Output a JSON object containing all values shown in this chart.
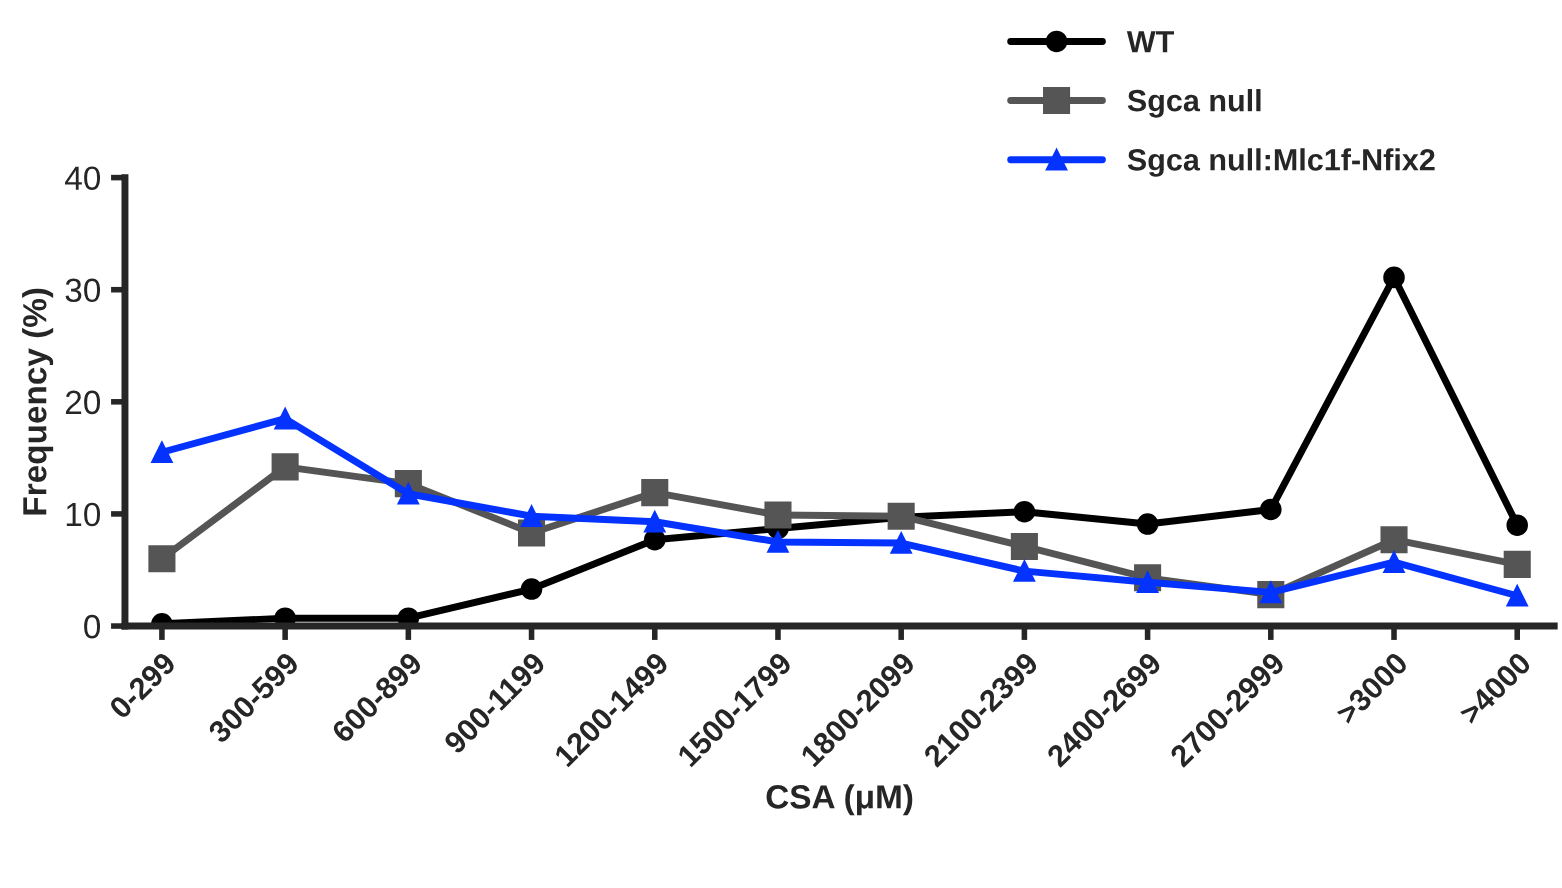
{
  "chart_data": {
    "type": "line",
    "xlabel": "CSA (μM)",
    "ylabel": "Frequency (%)",
    "categories": [
      "0-299",
      "300-599",
      "600-899",
      "900-1199",
      "1200-1499",
      "1500-1799",
      "1800-2099",
      "2100-2399",
      "2400-2699",
      "2700-2999",
      ">3000",
      ">4000"
    ],
    "ylim": [
      0,
      40
    ],
    "yticks": [
      0,
      10,
      20,
      30,
      40
    ],
    "grid": false,
    "legend": "top right",
    "series": [
      {
        "name": "WT",
        "color": "#000000",
        "marker": "circle",
        "values": [
          0.2,
          0.7,
          0.7,
          3.3,
          7.7,
          8.7,
          9.7,
          10.2,
          9.1,
          10.4,
          31.1,
          9.0
        ]
      },
      {
        "name": "Sgca null",
        "color": "#555555",
        "marker": "square",
        "values": [
          6.0,
          14.2,
          12.7,
          8.3,
          11.9,
          9.9,
          9.8,
          7.1,
          4.3,
          2.8,
          7.7,
          5.5
        ]
      },
      {
        "name": "Sgca null:Mlc1f-Nfix2",
        "color": "#0433ff",
        "marker": "triangle",
        "values": [
          15.5,
          18.5,
          11.8,
          9.8,
          9.3,
          7.5,
          7.4,
          4.9,
          3.9,
          3.0,
          5.7,
          2.7
        ]
      }
    ]
  }
}
